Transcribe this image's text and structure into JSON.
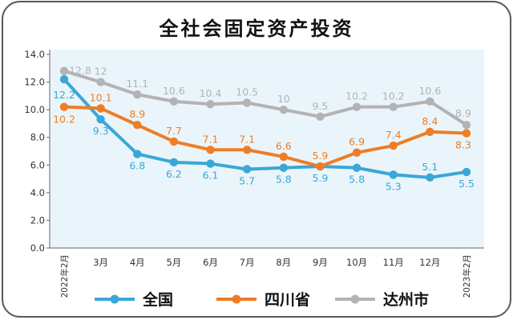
{
  "chart_data": {
    "type": "line",
    "title": "全社会固定资产投资",
    "categories": [
      "2022年2月",
      "3月",
      "4月",
      "5月",
      "6月",
      "7月",
      "8月",
      "9月",
      "10月",
      "11月",
      "12月",
      "2023年2月"
    ],
    "y_ticks": [
      "0.0",
      "2.0",
      "4.0",
      "6.0",
      "8.0",
      "10.0",
      "12.0",
      "14.0"
    ],
    "ylim": [
      0,
      14
    ],
    "grid": false,
    "legend_position": "bottom",
    "series": [
      {
        "name": "全国",
        "color": "#3aa7d8",
        "values": [
          12.2,
          9.3,
          6.8,
          6.2,
          6.1,
          5.7,
          5.8,
          5.9,
          5.8,
          5.3,
          5.1,
          5.5
        ],
        "labels": [
          "12.2",
          "9.3",
          "6.8",
          "6.2",
          "6.1",
          "5.7",
          "5.8",
          "5.9",
          "5.8",
          "5.3",
          "5.1",
          "5.5"
        ]
      },
      {
        "name": "四川省",
        "color": "#ee7d26",
        "values": [
          10.2,
          10.1,
          8.9,
          7.7,
          7.1,
          7.1,
          6.6,
          5.9,
          6.9,
          7.4,
          8.4,
          8.3
        ],
        "labels": [
          "10.2",
          "10.1",
          "8.9",
          "7.7",
          "7.1",
          "7.1",
          "6.6",
          "5.9",
          "6.9",
          "7.4",
          "8.4",
          "8.3"
        ]
      },
      {
        "name": "达州市",
        "color": "#b3b3b3",
        "values": [
          12.8,
          12,
          11.1,
          10.6,
          10.4,
          10.5,
          10,
          9.5,
          10.2,
          10.2,
          10.6,
          8.9
        ],
        "labels": [
          "12.8",
          "12",
          "11.1",
          "10.6",
          "10.4",
          "10.5",
          "10",
          "9.5",
          "10.2",
          "10.2",
          "10.6",
          "8.9"
        ]
      }
    ]
  },
  "colors": {
    "frame": "#5a5a5a",
    "plot_bg": "#eaf5fb",
    "axis": "#666666",
    "tick_text": "#333333"
  }
}
